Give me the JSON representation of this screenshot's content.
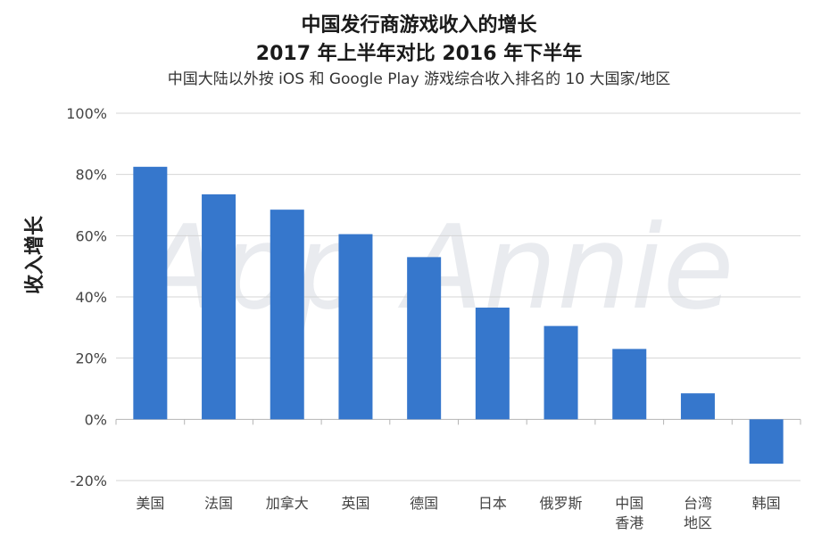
{
  "chart_data": {
    "type": "bar",
    "title": "中国发行商游戏收入的增长",
    "subtitle_line2": "2017 年上半年对比 2016 年下半年",
    "subtitle": "中国大陆以外按 iOS 和 Google Play 游戏综合收入排名的 10 大国家/地区",
    "ylabel": "收入增长",
    "xlabel": "",
    "categories": [
      [
        "美国"
      ],
      [
        "法国"
      ],
      [
        "加拿大"
      ],
      [
        "英国"
      ],
      [
        "德国"
      ],
      [
        "日本"
      ],
      [
        "俄罗斯"
      ],
      [
        "中国",
        "香港"
      ],
      [
        "台湾",
        "地区"
      ],
      [
        "韩国"
      ]
    ],
    "values": [
      82.5,
      73.5,
      68.5,
      60.5,
      53,
      36.5,
      30.5,
      23,
      8.5,
      -14.5
    ],
    "ylim": [
      -20,
      100
    ],
    "yticks": [
      -20,
      0,
      20,
      40,
      60,
      80,
      100
    ],
    "ytick_labels": [
      "-20%",
      "0%",
      "20%",
      "40%",
      "60%",
      "80%",
      "100%"
    ],
    "grid": true,
    "bar_color": "#3677cc",
    "watermark": "App Annie"
  }
}
